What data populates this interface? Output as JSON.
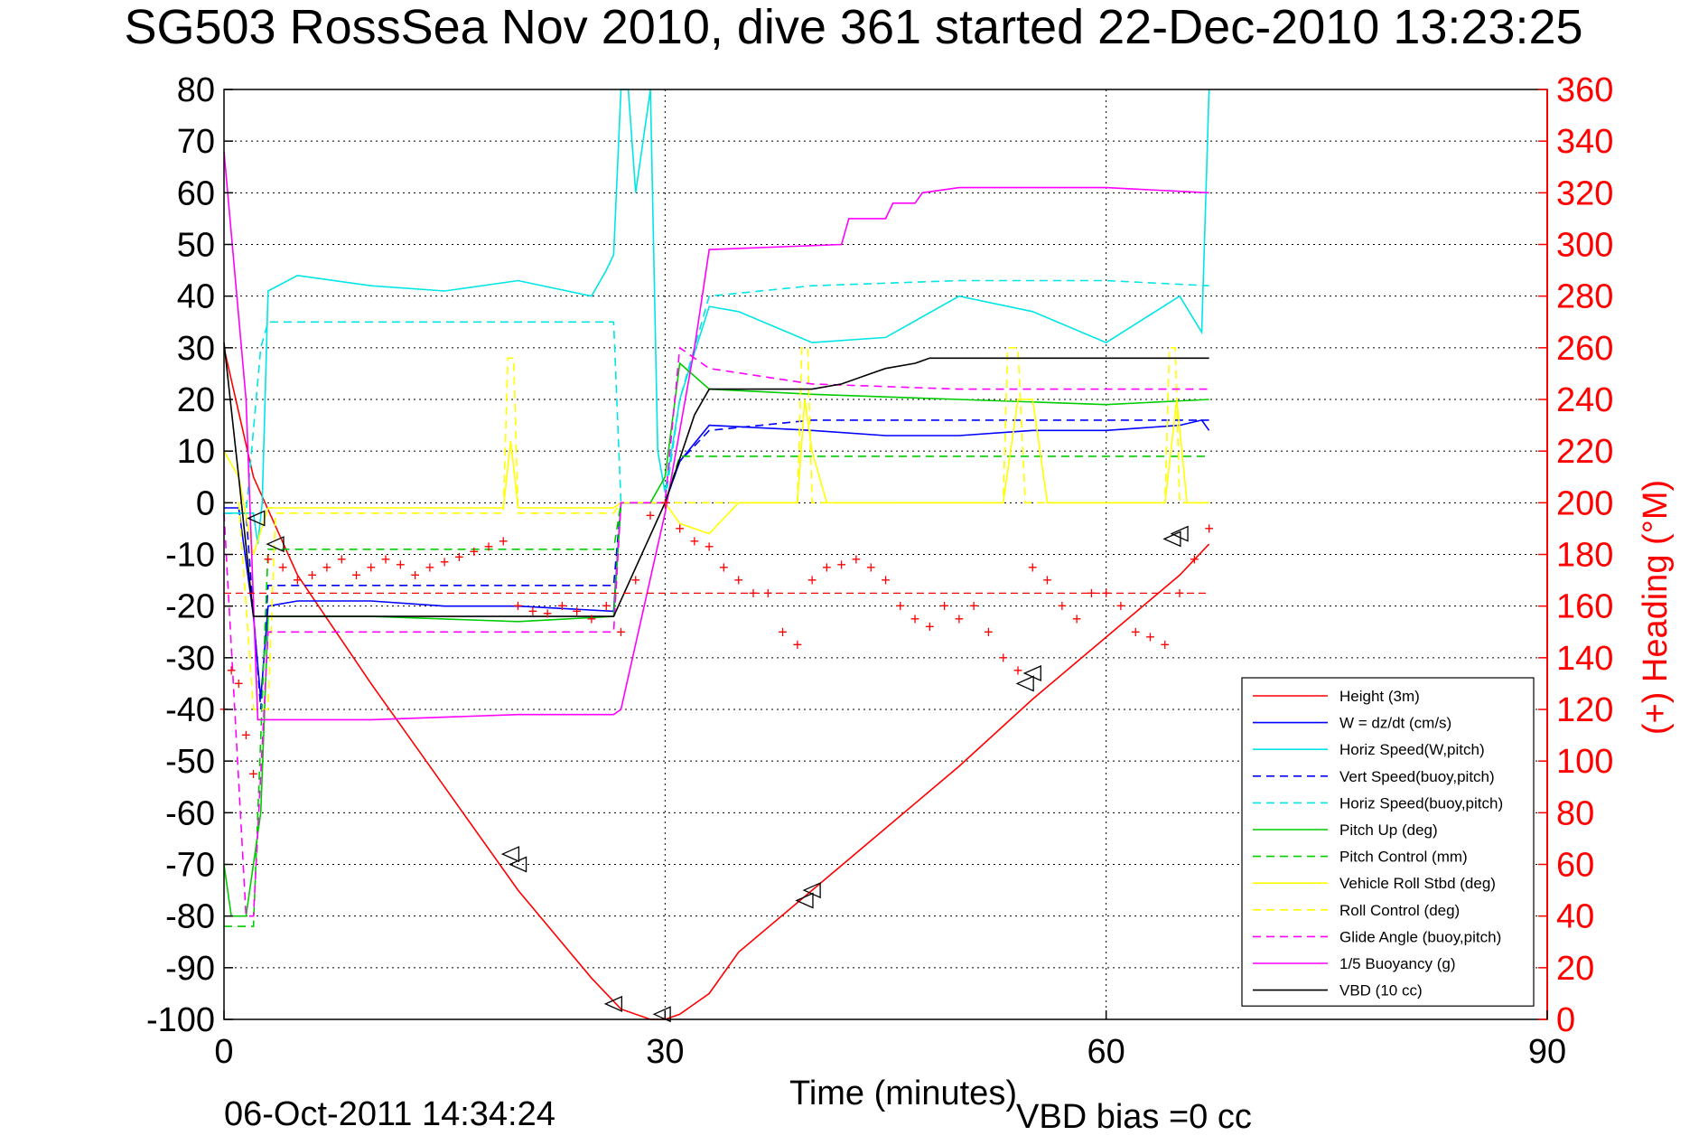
{
  "chart_data": {
    "type": "line",
    "title": "SG503 RossSea Nov 2010, dive 361 started 22-Dec-2010 13:23:25",
    "xlabel": "Time (minutes)",
    "y2label": "(+) Heading (°M)",
    "footer_left": "06-Oct-2011 14:34:24",
    "footer_right": "VBD bias =0 cc",
    "xlim": [
      0,
      90
    ],
    "ylim": [
      -100,
      80
    ],
    "y2lim": [
      0,
      360
    ],
    "x_ticks": [
      0,
      30,
      60,
      90
    ],
    "y_ticks": [
      80,
      70,
      60,
      50,
      40,
      30,
      20,
      10,
      0,
      -10,
      -20,
      -30,
      -40,
      -50,
      -60,
      -70,
      -80,
      -90,
      -100
    ],
    "y2_ticks": [
      360,
      340,
      320,
      300,
      280,
      260,
      240,
      220,
      200,
      180,
      160,
      140,
      120,
      100,
      80,
      60,
      40,
      20,
      0
    ],
    "grid": true,
    "legend_position": "bottom-right",
    "series": [
      {
        "name": "Height (3m)",
        "color": "#ff0000",
        "style": "solid",
        "x": [
          0,
          2,
          5,
          10,
          15,
          20,
          25,
          27,
          29,
          30,
          31,
          33,
          35,
          40,
          45,
          50,
          55,
          60,
          65,
          67
        ],
        "values": [
          30,
          5,
          -14,
          -35,
          -55,
          -75,
          -92,
          -98,
          -100,
          -100,
          -99,
          -95,
          -87,
          -75,
          -63,
          -51,
          -38,
          -26,
          -14,
          -8
        ]
      },
      {
        "name": "W = dz/dt (cm/s)",
        "color": "#0000ff",
        "style": "solid",
        "x": [
          0,
          1,
          2,
          2.5,
          3,
          5,
          10,
          15,
          20,
          26.5,
          27,
          29,
          30,
          31,
          33,
          40,
          45,
          50,
          55,
          60,
          65,
          66.5,
          67
        ],
        "values": [
          -1,
          -1,
          -22,
          -38,
          -20,
          -19,
          -19,
          -20,
          -20,
          -21,
          0,
          0,
          0,
          8,
          15,
          14,
          13,
          13,
          14,
          14,
          15,
          16,
          14
        ]
      },
      {
        "name": "Horiz Speed(W,pitch)",
        "color": "#00e5e5",
        "style": "solid",
        "x": [
          0,
          2,
          2.3,
          2.6,
          3,
          5,
          10,
          15,
          20,
          25,
          26,
          26.5,
          27,
          27.5,
          28,
          29,
          29.5,
          30,
          31,
          33,
          35,
          40,
          45,
          50,
          55,
          60,
          65,
          66.5,
          67
        ],
        "values": [
          -2,
          -2,
          -8,
          0,
          41,
          44,
          42,
          41,
          43,
          40,
          45,
          48,
          80,
          80,
          60,
          80,
          10,
          2,
          20,
          38,
          37,
          31,
          32,
          40,
          37,
          31,
          40,
          33,
          80
        ]
      },
      {
        "name": "Vert Speed(buoy,pitch)",
        "color": "#0000ff",
        "style": "dashed",
        "x": [
          0,
          1.5,
          2.5,
          3,
          5,
          10,
          20,
          26.5,
          27,
          29,
          30,
          31,
          33,
          40,
          50,
          60,
          67
        ],
        "values": [
          -2,
          -2,
          -40,
          -16,
          -16,
          -16,
          -16,
          -16,
          0,
          0,
          0,
          8,
          14,
          16,
          16,
          16,
          16
        ]
      },
      {
        "name": "Horiz Speed(buoy,pitch)",
        "color": "#00e5e5",
        "style": "dashed",
        "x": [
          0,
          1.5,
          2.5,
          3,
          5,
          10,
          20,
          26.5,
          27,
          29,
          30,
          31,
          33,
          40,
          50,
          60,
          67
        ],
        "values": [
          -2,
          -2,
          30,
          35,
          35,
          35,
          35,
          35,
          0,
          0,
          0,
          20,
          40,
          42,
          43,
          43,
          42
        ]
      },
      {
        "name": "Pitch Up (deg)",
        "color": "#00cc00",
        "style": "solid",
        "x": [
          0,
          0.5,
          1.5,
          2.5,
          3,
          5,
          10,
          20,
          26.5,
          27,
          29,
          30,
          31,
          33,
          40,
          50,
          60,
          67
        ],
        "values": [
          -70,
          -80,
          -80,
          -60,
          -22,
          -22,
          -22,
          -23,
          -22,
          0,
          0,
          5,
          27,
          22,
          21,
          20,
          19,
          20
        ]
      },
      {
        "name": "Pitch Control (mm)",
        "color": "#00cc00",
        "style": "dashed",
        "x": [
          0,
          2,
          3,
          5,
          10,
          20,
          26.5,
          27,
          29,
          30,
          31,
          33,
          40,
          50,
          60,
          67
        ],
        "values": [
          -82,
          -82,
          -9,
          -9,
          -9,
          -9,
          -9,
          0,
          0,
          0,
          9,
          9,
          9,
          9,
          9,
          9
        ]
      },
      {
        "name": "Vehicle Roll Stbd (deg)",
        "color": "#ffff00",
        "style": "solid",
        "x": [
          0,
          1,
          2,
          3,
          5,
          10,
          19,
          19.5,
          20,
          21,
          26.5,
          27,
          29,
          30,
          31,
          33,
          35,
          39,
          39.5,
          40,
          41,
          45,
          53,
          54,
          55,
          56,
          60,
          64,
          64.8,
          65.5,
          67
        ],
        "values": [
          10,
          5,
          -10,
          -1,
          -1,
          -1,
          -1,
          12,
          -1,
          -1,
          -1,
          0,
          0,
          0,
          -4,
          -6,
          0,
          0,
          20,
          10,
          0,
          0,
          0,
          20,
          20,
          0,
          0,
          0,
          20,
          0,
          0
        ]
      },
      {
        "name": "Roll Control (deg)",
        "color": "#ffff00",
        "style": "dashed",
        "x": [
          0,
          1,
          2,
          3,
          3.5,
          5,
          10,
          19,
          19.3,
          19.7,
          20,
          26.5,
          27,
          29,
          30,
          31,
          33,
          39,
          39.3,
          39.7,
          40,
          53,
          53.3,
          54,
          54.5,
          64,
          64.3,
          64.7,
          65,
          67
        ],
        "values": [
          0,
          0,
          -40,
          -40,
          -2,
          -2,
          -2,
          -2,
          28,
          28,
          -2,
          -2,
          0,
          0,
          0,
          0,
          0,
          0,
          30,
          30,
          0,
          0,
          30,
          30,
          0,
          0,
          30,
          30,
          0,
          0
        ]
      },
      {
        "name": "Glide Angle (buoy,pitch)",
        "color": "#ff00ff",
        "style": "dashed",
        "x": [
          0,
          1.5,
          2,
          3,
          5,
          10,
          20,
          26.5,
          27,
          29,
          30,
          31,
          33,
          40,
          50,
          60,
          67
        ],
        "values": [
          -2,
          -80,
          -80,
          -25,
          -25,
          -25,
          -25,
          -25,
          0,
          0,
          0,
          30,
          26,
          23,
          22,
          22,
          22
        ]
      },
      {
        "name": "1/5 Buoyancy (g)",
        "color": "#ff00ff",
        "style": "solid",
        "x": [
          0,
          1.5,
          2.3,
          3,
          10,
          20,
          26.5,
          27,
          30,
          32,
          33,
          42,
          42.5,
          45,
          45.5,
          47,
          47.5,
          50,
          60,
          67
        ],
        "values": [
          68,
          20,
          -42,
          -42,
          -42,
          -41,
          -41,
          -40,
          -2,
          30,
          49,
          50,
          55,
          55,
          58,
          58,
          60,
          61,
          61,
          60
        ]
      },
      {
        "name": "VBD (10 cc)",
        "color": "#000000",
        "style": "solid",
        "x": [
          0,
          1,
          2,
          3,
          5,
          10,
          20,
          26.5,
          30,
          32,
          33,
          40,
          42,
          44,
          45,
          47,
          48,
          55,
          60,
          67
        ],
        "values": [
          31,
          5,
          -22,
          -22,
          -22,
          -22,
          -22,
          -22,
          0,
          17,
          22,
          22,
          23,
          25,
          26,
          27,
          28,
          28,
          28,
          28
        ]
      }
    ],
    "heading": {
      "name": "Heading",
      "color": "#ff0000",
      "marker": "+",
      "mean": 165,
      "x": [
        0,
        0.5,
        1,
        1.5,
        2,
        3,
        4,
        5,
        6,
        7,
        8,
        9,
        10,
        11,
        12,
        13,
        14,
        15,
        16,
        17,
        18,
        19,
        20,
        21,
        22,
        23,
        24,
        25,
        26,
        27,
        28,
        29,
        30,
        31,
        32,
        33,
        34,
        35,
        36,
        37,
        38,
        39,
        40,
        41,
        42,
        43,
        44,
        45,
        46,
        47,
        48,
        49,
        50,
        51,
        52,
        53,
        54,
        55,
        56,
        57,
        58,
        59,
        60,
        61,
        62,
        63,
        64,
        65,
        66,
        67
      ],
      "values": [
        120,
        135,
        130,
        110,
        95,
        178,
        175,
        170,
        172,
        175,
        178,
        172,
        175,
        178,
        176,
        172,
        175,
        177,
        179,
        181,
        183,
        185,
        160,
        158,
        157,
        160,
        158,
        155,
        160,
        150,
        170,
        195,
        200,
        190,
        185,
        183,
        175,
        170,
        165,
        165,
        150,
        145,
        170,
        175,
        176,
        178,
        175,
        170,
        160,
        155,
        152,
        160,
        155,
        160,
        150,
        140,
        135,
        175,
        170,
        160,
        155,
        165,
        165,
        160,
        150,
        148,
        145,
        165,
        178,
        190
      ]
    },
    "dive_phase_markers": {
      "x": [
        2.2,
        3.5,
        19.5,
        20,
        26.5,
        29.8,
        39.5,
        40,
        54.5,
        55,
        64.5,
        65
      ],
      "values": [
        -3,
        -8,
        -68,
        -70,
        -97,
        -99,
        -77,
        -75,
        -35,
        -33,
        -7,
        -6
      ]
    }
  }
}
